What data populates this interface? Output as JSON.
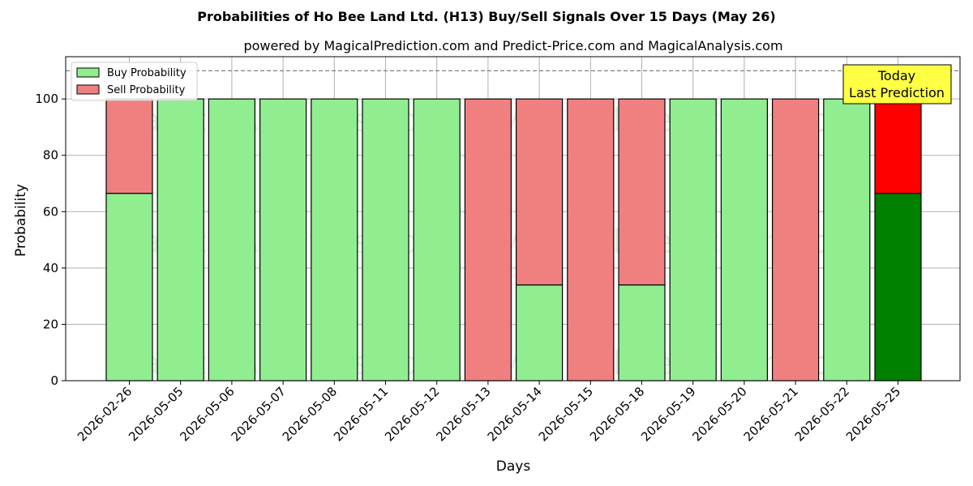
{
  "chart_data": {
    "type": "bar",
    "title": "Probabilities of Ho Bee Land Ltd. (H13) Buy/Sell Signals Over 15 Days (May 26)",
    "subtitle": "powered by MagicalPrediction.com and Predict-Price.com and MagicalAnalysis.com",
    "xlabel": "Days",
    "ylabel": "Probability",
    "ylim": [
      0,
      115
    ],
    "yticks": [
      0,
      20,
      40,
      60,
      80,
      100
    ],
    "grid": true,
    "stacked": true,
    "legend_position": "top-left",
    "categories": [
      "2026-02-26",
      "2026-05-05",
      "2026-05-06",
      "2026-05-07",
      "2026-05-08",
      "2026-05-11",
      "2026-05-12",
      "2026-05-13",
      "2026-05-14",
      "2026-05-15",
      "2026-05-18",
      "2026-05-19",
      "2026-05-20",
      "2026-05-21",
      "2026-05-22",
      "2026-05-25"
    ],
    "series": [
      {
        "name": "Buy Probability",
        "color": "#90ee90",
        "highlight_color": "#008000",
        "values": [
          66.5,
          100,
          100,
          100,
          100,
          100,
          100,
          0,
          34,
          0,
          34,
          100,
          100,
          0,
          100,
          66.5
        ]
      },
      {
        "name": "Sell Probability",
        "color": "#f08080",
        "highlight_color": "#ff0000",
        "values": [
          33.5,
          0,
          0,
          0,
          0,
          0,
          0,
          100,
          66,
          100,
          66,
          0,
          0,
          100,
          0,
          33.5
        ]
      }
    ],
    "reference_line": {
      "y": 110,
      "style": "dashed",
      "color": "#808080"
    },
    "annotation": {
      "line1": "Today",
      "line2": "Last Prediction",
      "background": "#ffff44",
      "target_category": "2026-05-25"
    },
    "watermarks": [
      "MagicalAnalysis.com",
      "MagicalPrediction.com"
    ]
  }
}
